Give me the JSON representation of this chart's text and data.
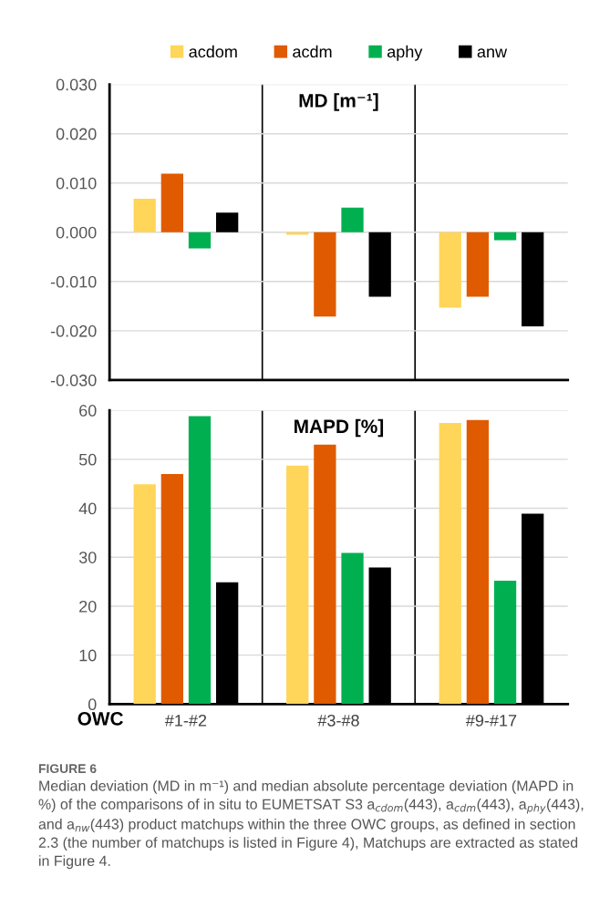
{
  "chart_data": [
    {
      "type": "bar",
      "title": "MD [m⁻¹]",
      "categories": [
        null,
        null,
        null
      ],
      "series": [
        {
          "name": "acdom",
          "color": "#ffd55a",
          "values": [
            0.0068,
            -0.0005,
            -0.0153
          ]
        },
        {
          "name": "acdm",
          "color": "#e05a00",
          "values": [
            0.0119,
            -0.0171,
            -0.0131
          ]
        },
        {
          "name": "aphy",
          "color": "#00b050",
          "values": [
            -0.0033,
            0.005,
            -0.0016
          ]
        },
        {
          "name": "anw",
          "color": "#000000",
          "values": [
            0.004,
            -0.0131,
            -0.0191
          ]
        }
      ],
      "ylim": [
        -0.03,
        0.03
      ],
      "yticks": [
        {
          "value": -0.03,
          "label": "-0.030"
        },
        {
          "value": -0.02,
          "label": "-0.020"
        },
        {
          "value": -0.01,
          "label": "-0.010"
        },
        {
          "value": 0,
          "label": "0.000"
        },
        {
          "value": 0.01,
          "label": "0.010"
        },
        {
          "value": 0.02,
          "label": "0.020"
        },
        {
          "value": 0.03,
          "label": "0.030"
        }
      ],
      "grid": true,
      "legend": "top",
      "tick_labels": "y"
    },
    {
      "type": "bar",
      "title": "MAPD [%]",
      "xlabel": "OWC",
      "categories": [
        "#1-#2",
        "#3-#8",
        "#9-#17"
      ],
      "series": [
        {
          "color": "#ffd55a",
          "values": [
            44.9,
            48.7,
            57.4
          ]
        },
        {
          "color": "#e05a00",
          "values": [
            47,
            53,
            58
          ]
        },
        {
          "color": "#00b050",
          "values": [
            58.8,
            30.9,
            25.2
          ]
        },
        {
          "color": "#000000",
          "values": [
            24.9,
            27.9,
            38.9
          ]
        }
      ],
      "ylim": [
        0,
        60
      ],
      "yticks": [
        0,
        10,
        20,
        30,
        40,
        50,
        60
      ],
      "grid": true,
      "annotations": [
        "FIGURE 6",
        "Median deviation (MD in m⁻¹) and median absolute percentage deviation (MAPD in %) of the comparisons of in situ to EUMETSAT S3 a$_{cdom}$(443), a$_{cdm}$(443), a$_{phy}$(443), and a$_{nw}$(443) product matchups within the three OWC groups, as defined in section 2.3 (the number of matchups is listed in Figure 4), Matchups are extracted as stated in Figure 4."
      ]
    }
  ]
}
